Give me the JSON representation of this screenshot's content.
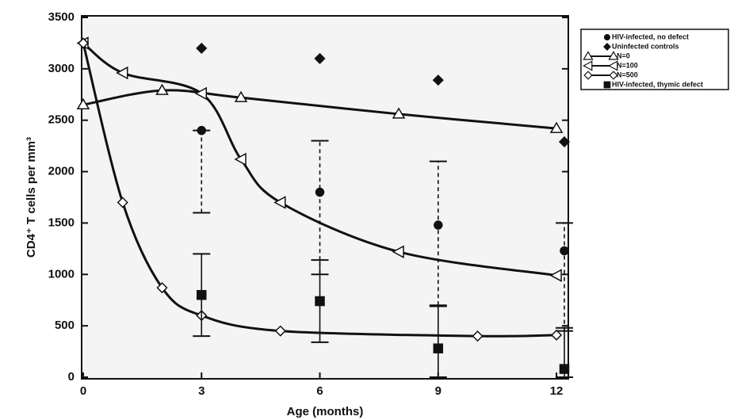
{
  "chart_data": {
    "type": "scatter",
    "x_label": "Age (months)",
    "y_label": "CD4⁺ T cells per mm³",
    "xlim": [
      0,
      12.3
    ],
    "ylim": [
      0,
      3500
    ],
    "xticks": [
      0,
      3,
      6,
      9,
      12
    ],
    "yticks": [
      0,
      500,
      1000,
      1500,
      2000,
      2500,
      3000,
      3500
    ],
    "legend": "outside-right",
    "series": [
      {
        "name": "HIV-infected, no defect",
        "type": "scatter",
        "marker": "circle",
        "color": "#111111",
        "dashed": true,
        "x": [
          3,
          6,
          9,
          12.2
        ],
        "values": [
          2400,
          1800,
          1480,
          1230
        ],
        "low": [
          1600,
          1000,
          700,
          450
        ],
        "high": [
          2400,
          2300,
          2100,
          1500
        ]
      },
      {
        "name": "Uninfected controls",
        "type": "scatter",
        "marker": "diamond",
        "color": "#111111",
        "x": [
          3,
          6,
          9,
          12.2
        ],
        "values": [
          3200,
          3100,
          2890,
          2290
        ]
      },
      {
        "name": "N=0",
        "type": "line",
        "marker": "triangle-up",
        "color": "#111111",
        "x": [
          0,
          2,
          4,
          8,
          12
        ],
        "values": [
          2650,
          2790,
          2720,
          2560,
          2420
        ]
      },
      {
        "name": "N=100",
        "type": "line",
        "marker": "triangle-left",
        "color": "#111111",
        "x": [
          0,
          1,
          3,
          4,
          5,
          8,
          12
        ],
        "values": [
          3250,
          2960,
          2760,
          2120,
          1700,
          1220,
          990
        ]
      },
      {
        "name": "N=500",
        "type": "line",
        "marker": "diamond-open",
        "color": "#111111",
        "x": [
          0,
          1,
          2,
          3,
          5,
          10,
          12
        ],
        "values": [
          3250,
          1700,
          870,
          600,
          450,
          400,
          410
        ]
      },
      {
        "name": "HIV-infected, thymic defect",
        "type": "scatter",
        "marker": "square",
        "color": "#111111",
        "dashed": false,
        "x": [
          3,
          6,
          9,
          12.2
        ],
        "values": [
          800,
          740,
          280,
          80
        ],
        "low": [
          400,
          340,
          0,
          0
        ],
        "high": [
          1200,
          1140,
          690,
          480
        ]
      }
    ]
  }
}
